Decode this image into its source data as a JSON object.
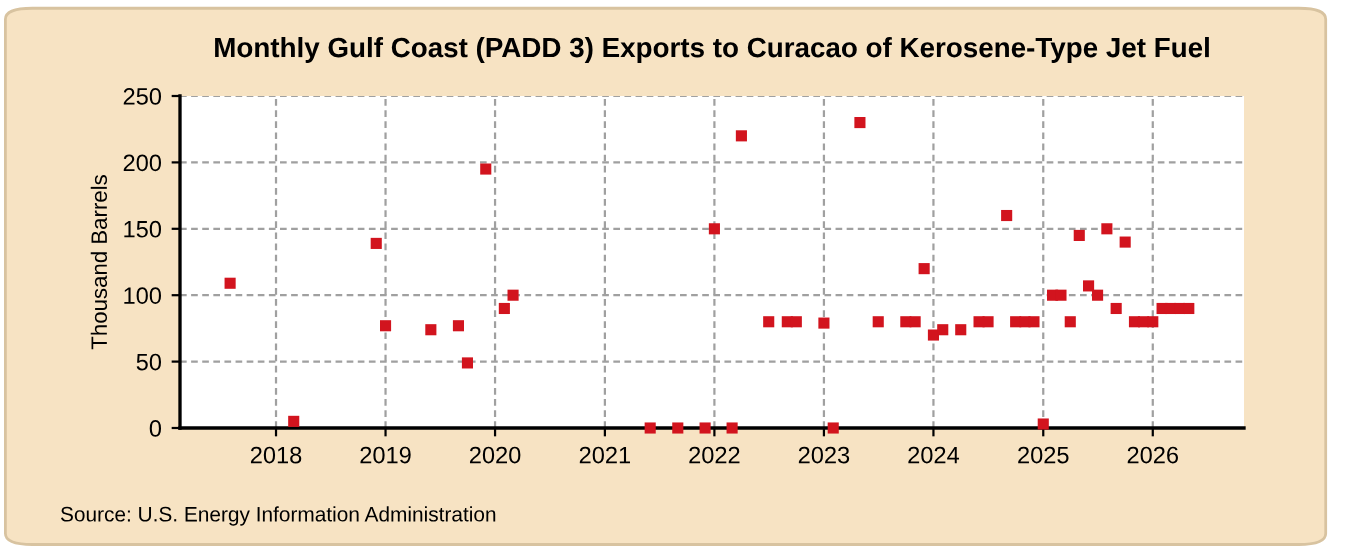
{
  "chart_data": {
    "type": "scatter",
    "title": "Monthly Gulf Coast (PADD 3) Exports to Curacao of Kerosene-Type Jet Fuel",
    "ylabel": "Thousand Barrels",
    "annotations": [
      "Source: U.S. Energy Information Administration"
    ],
    "x": [
      "2017-08",
      "2018-03",
      "2018-12",
      "2019-01",
      "2019-06",
      "2019-09",
      "2019-10",
      "2019-12",
      "2020-02",
      "2020-03",
      "2021-06",
      "2021-09",
      "2021-12",
      "2022-01",
      "2022-03",
      "2022-04",
      "2022-07",
      "2022-09",
      "2022-10",
      "2023-01",
      "2023-02",
      "2023-05",
      "2023-07",
      "2023-10",
      "2023-11",
      "2023-12",
      "2024-01",
      "2024-02",
      "2024-04",
      "2024-06",
      "2024-07",
      "2024-09",
      "2024-10",
      "2024-11",
      "2024-12",
      "2025-01",
      "2025-02",
      "2025-03",
      "2025-04",
      "2025-05",
      "2025-06",
      "2025-07",
      "2025-08",
      "2025-09",
      "2025-10",
      "2025-11",
      "2025-12",
      "2026-01",
      "2026-02",
      "2026-03",
      "2026-04",
      "2026-05"
    ],
    "series": [
      {
        "color": "#d2141e",
        "values": [
          109,
          5,
          139,
          77,
          74,
          77,
          49,
          195,
          90,
          100,
          0,
          0,
          0,
          150,
          0,
          220,
          80,
          80,
          80,
          79,
          0,
          230,
          80,
          80,
          80,
          120,
          70,
          74,
          74,
          80,
          80,
          160,
          80,
          80,
          80,
          3,
          100,
          100,
          80,
          145,
          107,
          100,
          150,
          90,
          140,
          80,
          80,
          80,
          90,
          90,
          90,
          90
        ]
      }
    ],
    "marker": "square",
    "xlim": [
      "2017-02-15",
      "2026-11-01"
    ],
    "xticks": [
      {
        "value": "2018-01-01",
        "label": "2018"
      },
      {
        "value": "2019-01-01",
        "label": "2019"
      },
      {
        "value": "2020-01-01",
        "label": "2020"
      },
      {
        "value": "2021-01-01",
        "label": "2021"
      },
      {
        "value": "2022-01-01",
        "label": "2022"
      },
      {
        "value": "2023-01-01",
        "label": "2023"
      },
      {
        "value": "2024-01-01",
        "label": "2024"
      },
      {
        "value": "2025-01-01",
        "label": "2025"
      },
      {
        "value": "2026-01-01",
        "label": "2026"
      }
    ],
    "ylim": [
      0,
      250
    ],
    "yticks": [
      0,
      50,
      100,
      150,
      200,
      250
    ],
    "grid": true
  }
}
